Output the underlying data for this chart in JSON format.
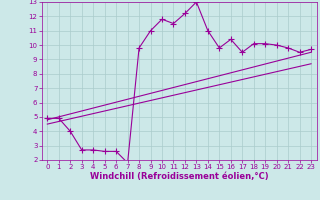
{
  "xlabel": "Windchill (Refroidissement éolien,°C)",
  "xlim": [
    -0.5,
    23.5
  ],
  "ylim": [
    2,
    13
  ],
  "xticks": [
    0,
    1,
    2,
    3,
    4,
    5,
    6,
    7,
    8,
    9,
    10,
    11,
    12,
    13,
    14,
    15,
    16,
    17,
    18,
    19,
    20,
    21,
    22,
    23
  ],
  "yticks": [
    2,
    3,
    4,
    5,
    6,
    7,
    8,
    9,
    10,
    11,
    12,
    13
  ],
  "bg_color": "#cce8e8",
  "line_color": "#990099",
  "grid_color": "#aacccc",
  "line1_x": [
    0,
    1,
    2,
    3,
    4,
    5,
    6,
    7,
    8,
    9,
    10,
    11,
    12,
    13,
    14,
    15,
    16,
    17,
    18,
    19,
    20,
    21,
    22,
    23
  ],
  "line1_y": [
    4.9,
    4.9,
    4.0,
    2.7,
    2.7,
    2.6,
    2.6,
    1.8,
    9.8,
    11.0,
    11.8,
    11.5,
    12.2,
    13.0,
    11.0,
    9.8,
    10.4,
    9.5,
    10.1,
    10.1,
    10.0,
    9.8,
    9.5,
    9.7
  ],
  "line2_x": [
    0,
    23
  ],
  "line2_y": [
    4.8,
    9.5
  ],
  "line3_x": [
    0,
    23
  ],
  "line3_y": [
    4.5,
    8.7
  ],
  "markersize": 2.5,
  "linewidth": 0.8,
  "tick_fontsize": 5.0,
  "xlabel_fontsize": 6.0
}
